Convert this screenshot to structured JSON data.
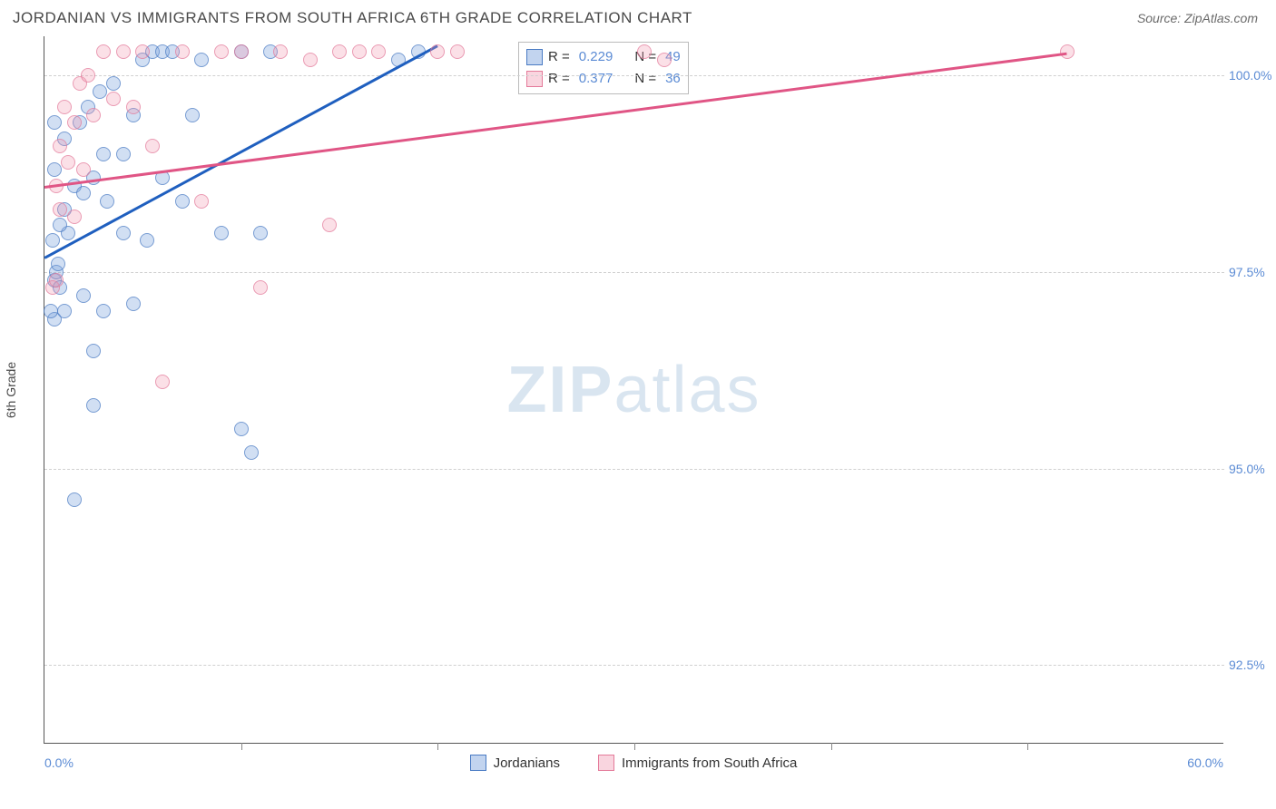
{
  "header": {
    "title": "JORDANIAN VS IMMIGRANTS FROM SOUTH AFRICA 6TH GRADE CORRELATION CHART",
    "source_label": "Source: ZipAtlas.com"
  },
  "watermark": {
    "bold": "ZIP",
    "light": "atlas"
  },
  "chart": {
    "type": "scatter",
    "y_axis_label": "6th Grade",
    "x_range": [
      0,
      60
    ],
    "y_range": [
      91.5,
      100.5
    ],
    "y_ticks": [
      {
        "value": 100.0,
        "label": "100.0%"
      },
      {
        "value": 97.5,
        "label": "97.5%"
      },
      {
        "value": 95.0,
        "label": "95.0%"
      },
      {
        "value": 92.5,
        "label": "92.5%"
      }
    ],
    "x_ticks_minor": [
      10,
      20,
      30,
      40,
      50
    ],
    "x_labels": [
      {
        "value": 0.0,
        "label": "0.0%",
        "anchor": "left"
      },
      {
        "value": 60.0,
        "label": "60.0%",
        "anchor": "right"
      }
    ],
    "grid_color": "#d0d0d0",
    "background_color": "#ffffff",
    "series": [
      {
        "name": "Jordanians",
        "color_fill": "rgba(120,160,220,0.45)",
        "color_stroke": "#4a7bc4",
        "marker_size": 16,
        "r_value": "0.229",
        "n_value": "49",
        "trend": {
          "x1": 0,
          "y1": 97.7,
          "x2": 20,
          "y2": 100.4,
          "color": "#1f5fbf"
        },
        "points": [
          [
            0.5,
            97.4
          ],
          [
            0.6,
            97.5
          ],
          [
            0.8,
            97.3
          ],
          [
            0.5,
            96.9
          ],
          [
            0.3,
            97.0
          ],
          [
            0.7,
            97.6
          ],
          [
            1.0,
            97.0
          ],
          [
            1.5,
            94.6
          ],
          [
            2.5,
            95.8
          ],
          [
            3.0,
            97.0
          ],
          [
            1.0,
            98.3
          ],
          [
            1.5,
            98.6
          ],
          [
            2.0,
            98.5
          ],
          [
            2.5,
            98.7
          ],
          [
            3.0,
            99.0
          ],
          [
            0.5,
            98.8
          ],
          [
            1.0,
            99.2
          ],
          [
            1.8,
            99.4
          ],
          [
            2.2,
            99.6
          ],
          [
            2.8,
            99.8
          ],
          [
            4.0,
            99.0
          ],
          [
            4.5,
            99.5
          ],
          [
            5.0,
            100.2
          ],
          [
            5.5,
            100.3
          ],
          [
            6.0,
            100.3
          ],
          [
            6.5,
            100.3
          ],
          [
            7.0,
            98.4
          ],
          [
            8.0,
            100.2
          ],
          [
            9.0,
            98.0
          ],
          [
            10.0,
            95.5
          ],
          [
            10.5,
            95.2
          ],
          [
            11.0,
            98.0
          ],
          [
            11.5,
            100.3
          ],
          [
            10.0,
            100.3
          ],
          [
            4.0,
            98.0
          ],
          [
            0.5,
            99.4
          ],
          [
            3.5,
            99.9
          ],
          [
            2.0,
            97.2
          ],
          [
            2.5,
            96.5
          ],
          [
            4.5,
            97.1
          ],
          [
            6.0,
            98.7
          ],
          [
            1.2,
            98.0
          ],
          [
            7.5,
            99.5
          ],
          [
            18.0,
            100.2
          ],
          [
            19.0,
            100.3
          ],
          [
            0.4,
            97.9
          ],
          [
            0.8,
            98.1
          ],
          [
            3.2,
            98.4
          ],
          [
            5.2,
            97.9
          ]
        ]
      },
      {
        "name": "Immigrants from South Africa",
        "color_fill": "rgba(240,150,175,0.40)",
        "color_stroke": "#e47a9a",
        "marker_size": 16,
        "r_value": "0.377",
        "n_value": "36",
        "trend": {
          "x1": 0,
          "y1": 98.6,
          "x2": 52,
          "y2": 100.3,
          "color": "#e05585"
        },
        "points": [
          [
            0.4,
            97.3
          ],
          [
            0.6,
            97.4
          ],
          [
            0.8,
            98.3
          ],
          [
            0.6,
            98.6
          ],
          [
            1.5,
            98.2
          ],
          [
            2.0,
            98.8
          ],
          [
            3.0,
            100.3
          ],
          [
            4.0,
            100.3
          ],
          [
            5.0,
            100.3
          ],
          [
            6.0,
            96.1
          ],
          [
            7.0,
            100.3
          ],
          [
            8.0,
            98.4
          ],
          [
            9.0,
            100.3
          ],
          [
            10.0,
            100.3
          ],
          [
            11.0,
            97.3
          ],
          [
            12.0,
            100.3
          ],
          [
            13.5,
            100.2
          ],
          [
            14.5,
            98.1
          ],
          [
            15.0,
            100.3
          ],
          [
            16.0,
            100.3
          ],
          [
            17.0,
            100.3
          ],
          [
            20.0,
            100.3
          ],
          [
            21.0,
            100.3
          ],
          [
            1.0,
            99.6
          ],
          [
            1.5,
            99.4
          ],
          [
            2.5,
            99.5
          ],
          [
            1.8,
            99.9
          ],
          [
            2.2,
            100.0
          ],
          [
            3.5,
            99.7
          ],
          [
            4.5,
            99.6
          ],
          [
            5.5,
            99.1
          ],
          [
            30.5,
            100.3
          ],
          [
            31.5,
            100.2
          ],
          [
            52.0,
            100.3
          ],
          [
            0.8,
            99.1
          ],
          [
            1.2,
            98.9
          ]
        ]
      }
    ],
    "info_legend": {
      "r_prefix": "R =",
      "n_prefix": "N ="
    },
    "bottom_legend": [
      {
        "series": 0,
        "label": "Jordanians"
      },
      {
        "series": 1,
        "label": "Immigrants from South Africa"
      }
    ]
  }
}
